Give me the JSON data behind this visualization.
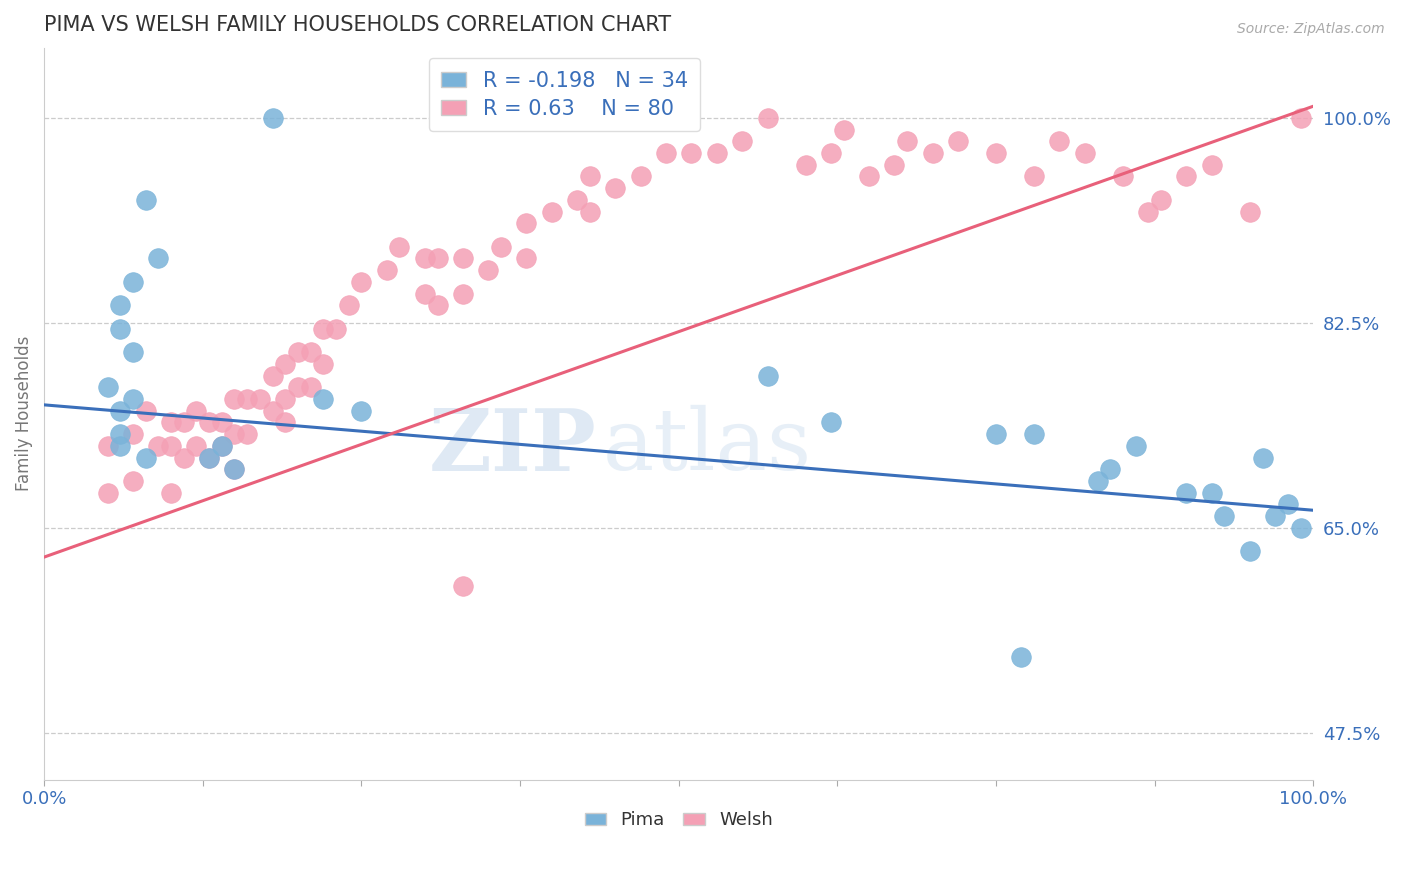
{
  "title": "PIMA VS WELSH FAMILY HOUSEHOLDS CORRELATION CHART",
  "source": "Source: ZipAtlas.com",
  "ylabel": "Family Households",
  "xlim": [
    0.0,
    1.0
  ],
  "ylim": [
    0.435,
    1.06
  ],
  "ytick_positions": [
    0.475,
    0.65,
    0.825,
    1.0
  ],
  "ytick_labels": [
    "47.5%",
    "65.0%",
    "82.5%",
    "100.0%"
  ],
  "pima_color": "#7ab3d9",
  "welsh_color": "#f4a0b5",
  "pima_line_color": "#3a6fba",
  "welsh_line_color": "#e8607a",
  "pima_R": -0.198,
  "pima_N": 34,
  "welsh_R": 0.63,
  "welsh_N": 80,
  "pima_line_x0": 0.0,
  "pima_line_y0": 0.755,
  "pima_line_x1": 1.0,
  "pima_line_y1": 0.665,
  "welsh_line_x0": 0.0,
  "welsh_line_y0": 0.625,
  "welsh_line_x1": 1.0,
  "welsh_line_y1": 1.01,
  "pima_x": [
    0.18,
    0.08,
    0.09,
    0.07,
    0.06,
    0.06,
    0.07,
    0.05,
    0.07,
    0.06,
    0.06,
    0.06,
    0.08,
    0.22,
    0.57,
    0.62,
    0.75,
    0.78,
    0.84,
    0.86,
    0.9,
    0.92,
    0.93,
    0.95,
    0.96,
    0.97,
    0.98,
    0.99,
    0.15,
    0.25,
    0.13,
    0.14,
    0.83,
    0.77
  ],
  "pima_y": [
    1.0,
    0.93,
    0.88,
    0.86,
    0.84,
    0.82,
    0.8,
    0.77,
    0.76,
    0.75,
    0.73,
    0.72,
    0.71,
    0.76,
    0.78,
    0.74,
    0.73,
    0.73,
    0.7,
    0.72,
    0.68,
    0.68,
    0.66,
    0.63,
    0.71,
    0.66,
    0.67,
    0.65,
    0.7,
    0.75,
    0.71,
    0.72,
    0.69,
    0.54
  ],
  "welsh_x": [
    0.05,
    0.05,
    0.07,
    0.07,
    0.08,
    0.09,
    0.1,
    0.1,
    0.1,
    0.11,
    0.11,
    0.12,
    0.12,
    0.13,
    0.13,
    0.14,
    0.14,
    0.15,
    0.15,
    0.15,
    0.16,
    0.16,
    0.17,
    0.18,
    0.18,
    0.19,
    0.19,
    0.19,
    0.2,
    0.2,
    0.21,
    0.21,
    0.22,
    0.22,
    0.23,
    0.24,
    0.25,
    0.27,
    0.28,
    0.3,
    0.3,
    0.31,
    0.31,
    0.33,
    0.33,
    0.35,
    0.36,
    0.38,
    0.38,
    0.4,
    0.42,
    0.43,
    0.43,
    0.45,
    0.47,
    0.49,
    0.51,
    0.53,
    0.55,
    0.57,
    0.6,
    0.62,
    0.63,
    0.65,
    0.67,
    0.68,
    0.7,
    0.72,
    0.75,
    0.78,
    0.8,
    0.82,
    0.85,
    0.87,
    0.88,
    0.9,
    0.92,
    0.95,
    0.99,
    0.33
  ],
  "welsh_y": [
    0.72,
    0.68,
    0.73,
    0.69,
    0.75,
    0.72,
    0.74,
    0.72,
    0.68,
    0.74,
    0.71,
    0.75,
    0.72,
    0.74,
    0.71,
    0.74,
    0.72,
    0.76,
    0.73,
    0.7,
    0.76,
    0.73,
    0.76,
    0.78,
    0.75,
    0.79,
    0.76,
    0.74,
    0.8,
    0.77,
    0.8,
    0.77,
    0.82,
    0.79,
    0.82,
    0.84,
    0.86,
    0.87,
    0.89,
    0.88,
    0.85,
    0.88,
    0.84,
    0.88,
    0.85,
    0.87,
    0.89,
    0.91,
    0.88,
    0.92,
    0.93,
    0.95,
    0.92,
    0.94,
    0.95,
    0.97,
    0.97,
    0.97,
    0.98,
    1.0,
    0.96,
    0.97,
    0.99,
    0.95,
    0.96,
    0.98,
    0.97,
    0.98,
    0.97,
    0.95,
    0.98,
    0.97,
    0.95,
    0.92,
    0.93,
    0.95,
    0.96,
    0.92,
    1.0,
    0.6
  ],
  "watermark_zip": "ZIP",
  "watermark_atlas": "atlas",
  "background_color": "#ffffff",
  "grid_color": "#cccccc",
  "title_color": "#333333",
  "axis_label_color": "#3a6fba",
  "ylabel_color": "#777777"
}
